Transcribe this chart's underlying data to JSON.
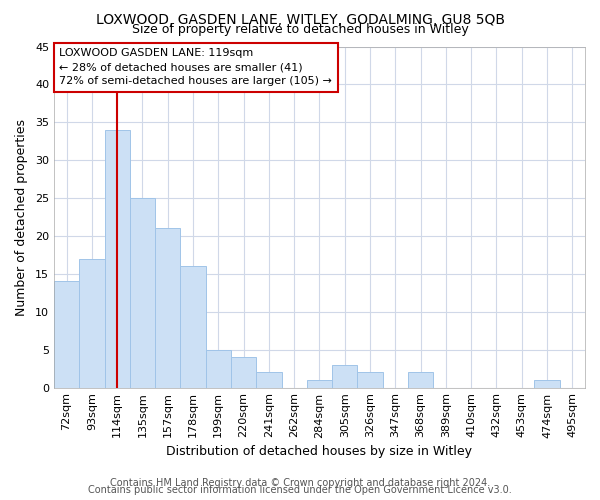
{
  "title": "LOXWOOD, GASDEN LANE, WITLEY, GODALMING, GU8 5QB",
  "subtitle": "Size of property relative to detached houses in Witley",
  "xlabel": "Distribution of detached houses by size in Witley",
  "ylabel": "Number of detached properties",
  "bar_labels": [
    "72sqm",
    "93sqm",
    "114sqm",
    "135sqm",
    "157sqm",
    "178sqm",
    "199sqm",
    "220sqm",
    "241sqm",
    "262sqm",
    "284sqm",
    "305sqm",
    "326sqm",
    "347sqm",
    "368sqm",
    "389sqm",
    "410sqm",
    "432sqm",
    "453sqm",
    "474sqm",
    "495sqm"
  ],
  "bar_values": [
    14,
    17,
    34,
    25,
    21,
    16,
    5,
    4,
    2,
    0,
    1,
    3,
    2,
    0,
    2,
    0,
    0,
    0,
    0,
    1,
    0
  ],
  "bar_color": "#cce0f5",
  "bar_edge_color": "#a0c4e8",
  "ylim": [
    0,
    45
  ],
  "yticks": [
    0,
    5,
    10,
    15,
    20,
    25,
    30,
    35,
    40,
    45
  ],
  "vline_index": 2,
  "vline_color": "#cc0000",
  "annotation_title": "LOXWOOD GASDEN LANE: 119sqm",
  "annotation_line1": "← 28% of detached houses are smaller (41)",
  "annotation_line2": "72% of semi-detached houses are larger (105) →",
  "footer1": "Contains HM Land Registry data © Crown copyright and database right 2024.",
  "footer2": "Contains public sector information licensed under the Open Government Licence v3.0.",
  "background_color": "#ffffff",
  "grid_color": "#d0d8e8",
  "title_fontsize": 10,
  "subtitle_fontsize": 9,
  "axis_label_fontsize": 9,
  "tick_fontsize": 8,
  "footer_fontsize": 7,
  "ann_fontsize": 8
}
